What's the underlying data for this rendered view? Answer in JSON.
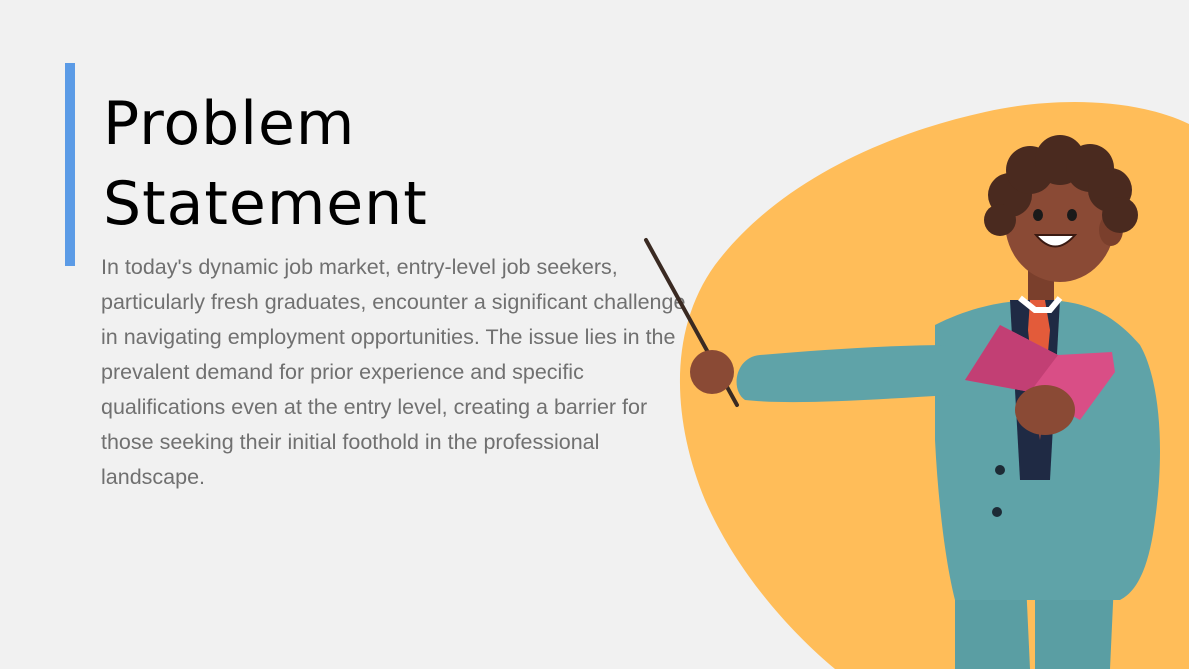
{
  "slide": {
    "title": "Problem Statement",
    "body": "In today's dynamic job market, entry-level job seekers, particularly fresh graduates, encounter a significant challenge in navigating employment opportunities. The issue lies in the prevalent demand for prior experience and specific qualifications even at the entry level, creating a barrier for those seeking their initial foothold in the professional landscape."
  },
  "colors": {
    "background": "#f1f1f1",
    "accent_bar": "#5b9be6",
    "blob": "#ffbd59",
    "suit": "#5fa3a8",
    "book": "#d94e86",
    "title_text": "#000000",
    "body_text": "#707070"
  }
}
